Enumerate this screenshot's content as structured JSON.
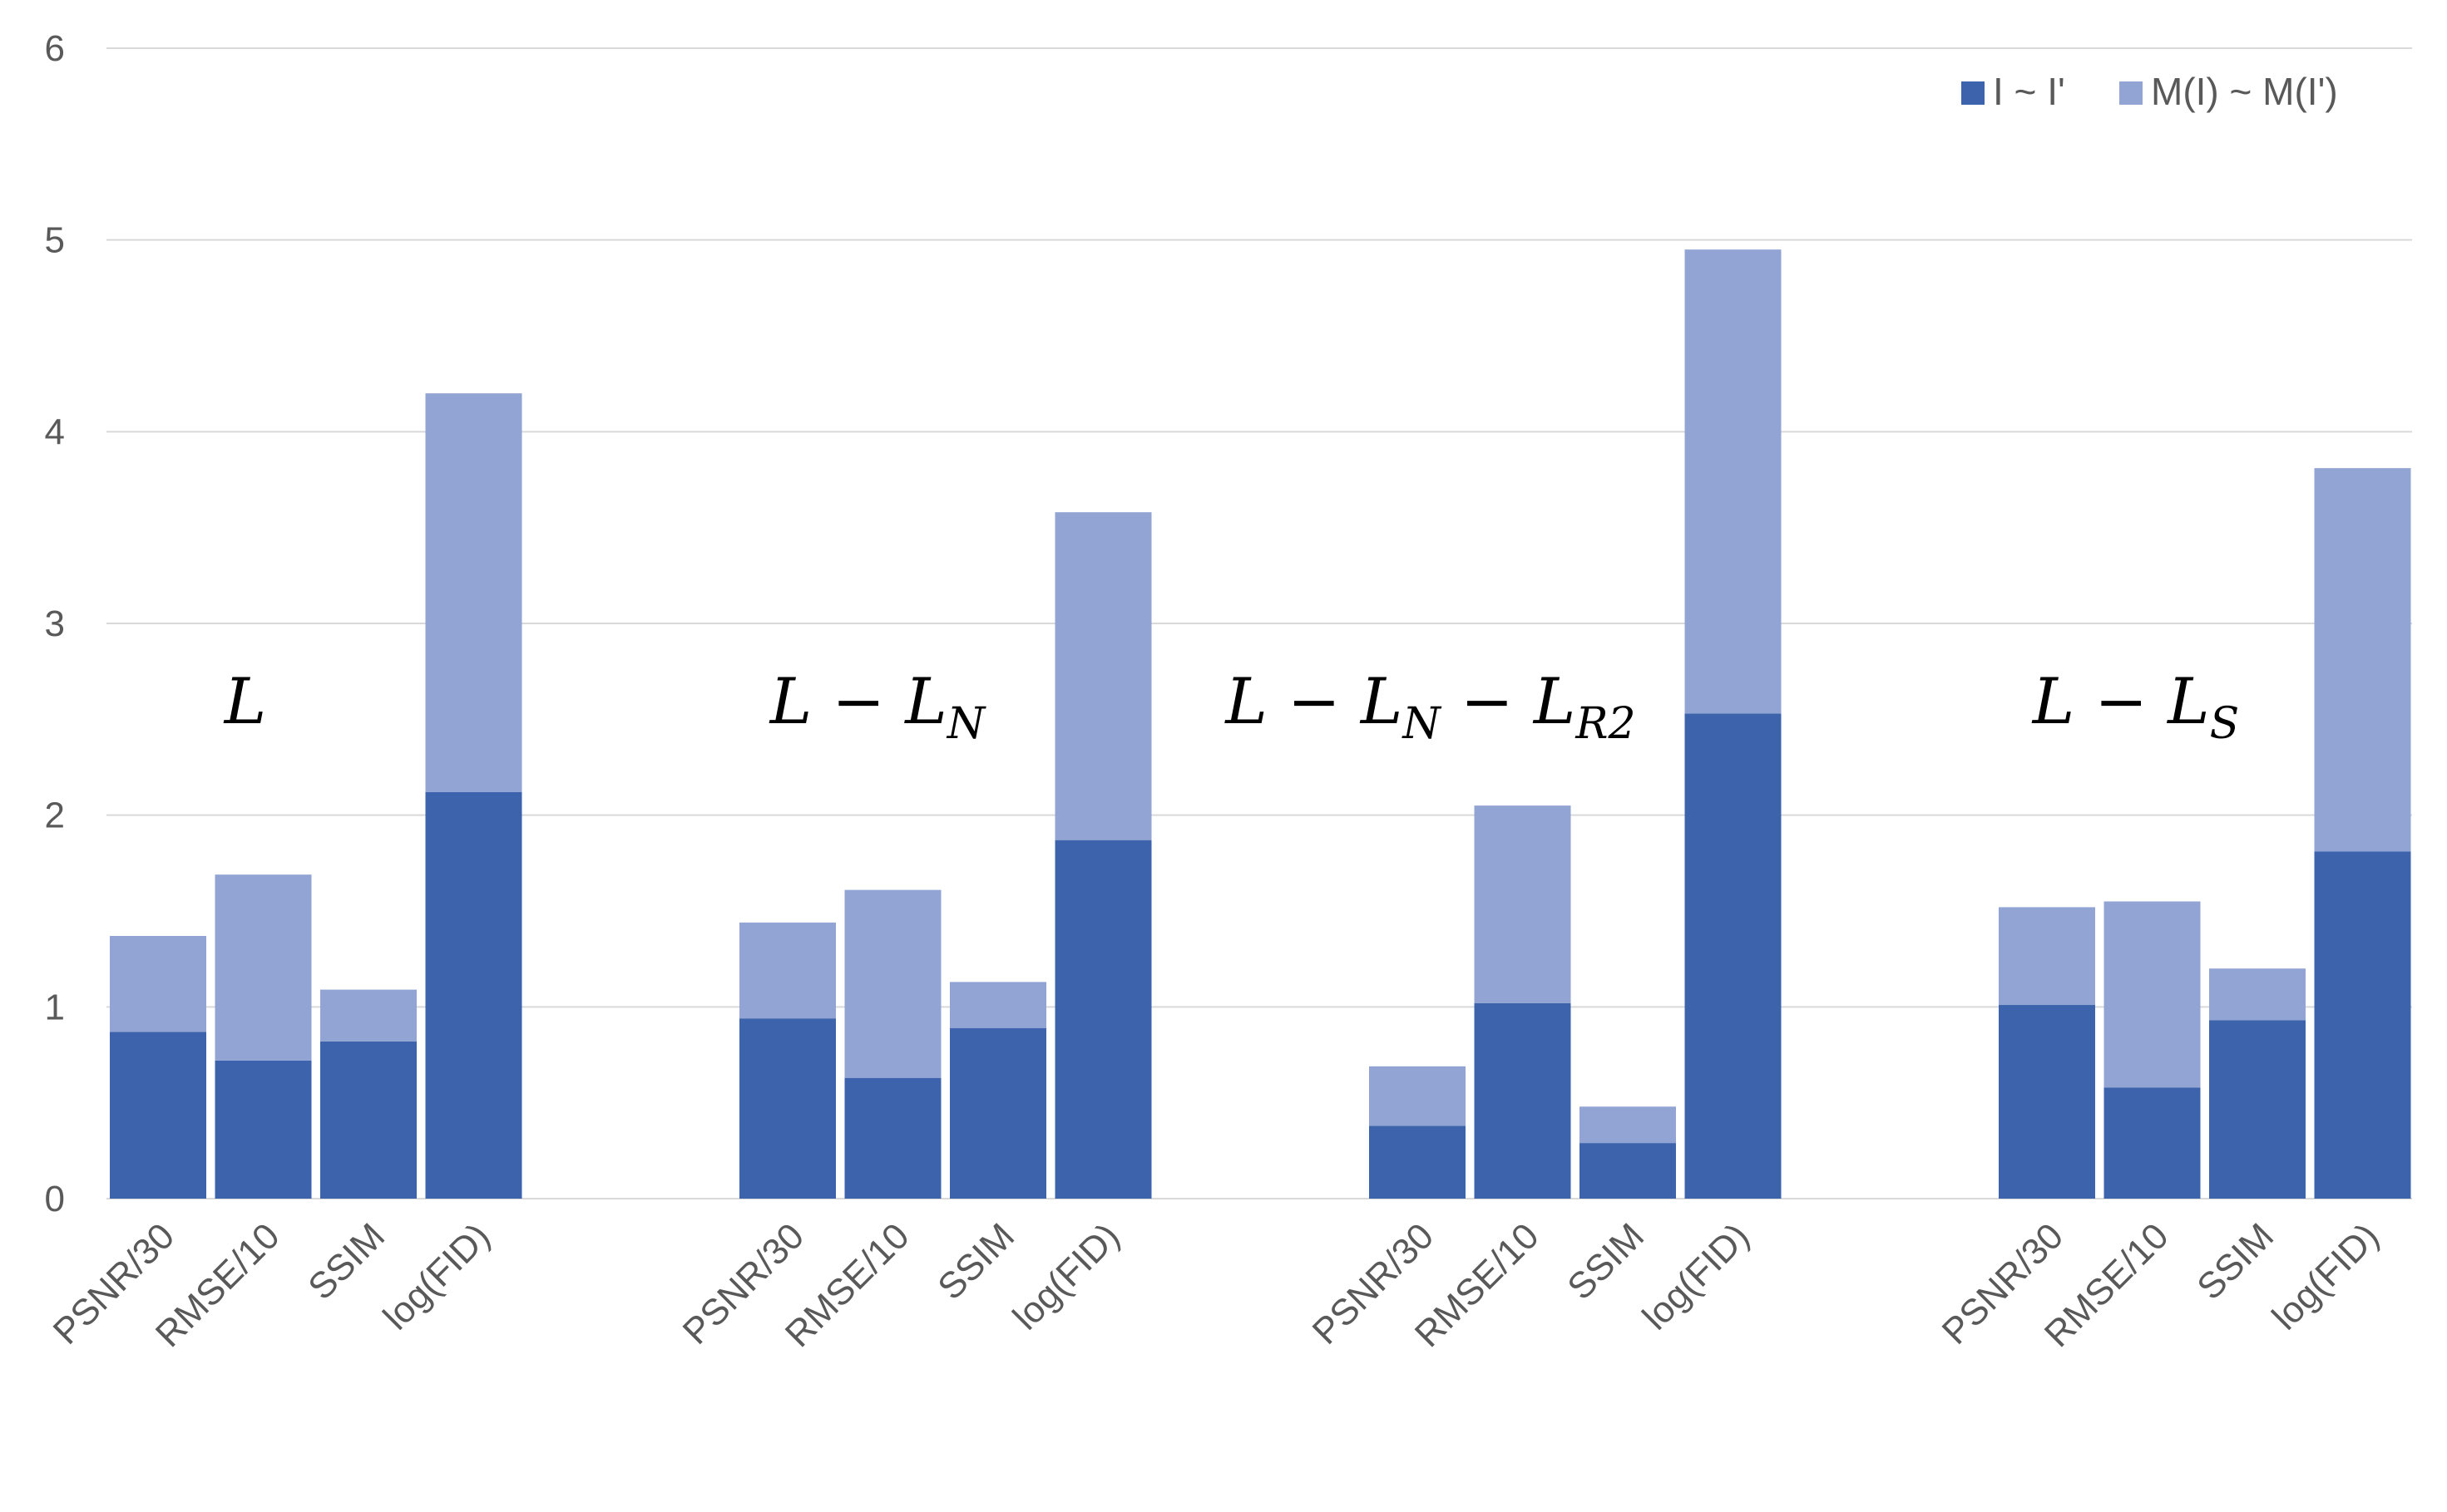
{
  "chart_data": {
    "type": "bar",
    "stacked": true,
    "ylim": [
      0,
      6
    ],
    "yticks": [
      0,
      1,
      2,
      3,
      4,
      5,
      6
    ],
    "grid": true,
    "legend_position": "top-right",
    "colors": {
      "I ~ I'": "#3c63ac",
      "M(I) ~ M(I')": "#91a4d4"
    },
    "series_names": [
      "I ~ I'",
      "M(I) ~ M(I')"
    ],
    "groups": [
      {
        "title": "L",
        "title_sub": "",
        "categories": [
          "PSNR/30",
          "RMSE/10",
          "SSIM",
          "log(FID)"
        ],
        "series": [
          {
            "name": "I ~ I'",
            "values": [
              0.87,
              0.72,
              0.82,
              2.12
            ]
          },
          {
            "name": "M(I) ~ M(I')",
            "values": [
              0.5,
              0.97,
              0.27,
              2.08
            ]
          }
        ]
      },
      {
        "title": "L − L",
        "title_sub": "N",
        "categories": [
          "PSNR/30",
          "RMSE/10",
          "SSIM",
          "log(FID)"
        ],
        "series": [
          {
            "name": "I ~ I'",
            "values": [
              0.94,
              0.63,
              0.89,
              1.87
            ]
          },
          {
            "name": "M(I) ~ M(I')",
            "values": [
              0.5,
              0.98,
              0.24,
              1.71
            ]
          }
        ]
      },
      {
        "title": "L − L",
        "title_sub": "N",
        "title_2": " − L",
        "title_sub_2": "R2",
        "categories": [
          "PSNR/30",
          "RMSE/10",
          "SSIM",
          "log(FID)"
        ],
        "series": [
          {
            "name": "I ~ I'",
            "values": [
              0.38,
              1.02,
              0.29,
              2.53
            ]
          },
          {
            "name": "M(I) ~ M(I')",
            "values": [
              0.31,
              1.03,
              0.19,
              2.42
            ]
          }
        ]
      },
      {
        "title": "L − L",
        "title_sub": "S",
        "categories": [
          "PSNR/30",
          "RMSE/10",
          "SSIM",
          "log(FID)"
        ],
        "series": [
          {
            "name": "I ~ I'",
            "values": [
              1.01,
              0.58,
              0.93,
              1.81
            ]
          },
          {
            "name": "M(I) ~ M(I')",
            "values": [
              0.51,
              0.97,
              0.27,
              2.0
            ]
          }
        ]
      }
    ]
  }
}
